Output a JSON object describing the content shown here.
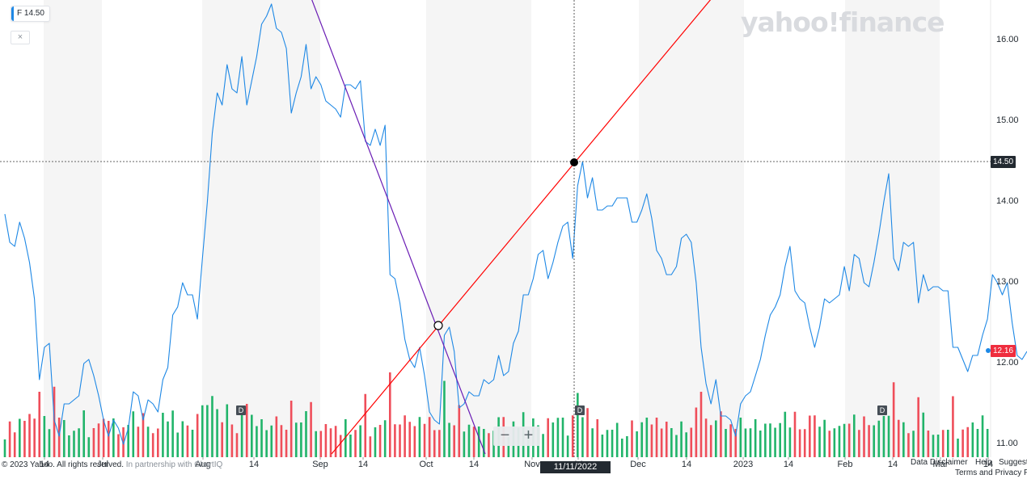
{
  "ticker": {
    "symbol": "F",
    "price": "14.50",
    "close_glyph": "×"
  },
  "logo": {
    "text": "yahoo!finance"
  },
  "crosshair": {
    "price_label": "14.50",
    "date_label": "11/11/2022"
  },
  "last_price_label": "12.16",
  "zoom": {
    "minus": "−",
    "plus": "+"
  },
  "dividend_marker": "D",
  "footer": {
    "copyright": "© 2023 Yahoo. All rights reserved.",
    "partnership": "In partnership with ChartIQ",
    "data_disclaimer": "Data Disclaimer",
    "help": "Help",
    "suggest": "Suggest",
    "terms": "Terms and Privacy P"
  },
  "colors": {
    "line": "#1e88e5",
    "up": "#21b46a",
    "down": "#ef4e5a",
    "trend_red": "#ff0000",
    "trend_purple": "#6a1cb4",
    "price_tag": "#1e88e5",
    "last_tag": "#ef2d3e"
  },
  "chart_data": {
    "type": "line",
    "symbol": "F",
    "ylim": [
      10.98,
      16.5
    ],
    "y_ticks": [
      "16.00",
      "15.00",
      "14.00",
      "13.00",
      "12.00",
      "11.00"
    ],
    "x_ticks": [
      "14",
      "Jul",
      "Aug",
      "14",
      "Sep",
      "14",
      "Oct",
      "14",
      "Nov",
      "14",
      "Dec",
      "14",
      "2023",
      "14",
      "Feb",
      "14",
      "Mar",
      "14"
    ],
    "series": [
      {
        "values": [
          13.85,
          13.5,
          13.45,
          13.75,
          13.55,
          13.25,
          12.8,
          11.8,
          12.2,
          12.25,
          11.3,
          11.1,
          11.5,
          11.5,
          11.55,
          11.6,
          12.0,
          12.05,
          11.85,
          11.6,
          11.3,
          11.1,
          11.3,
          11.2,
          11.0,
          11.2,
          11.65,
          11.6,
          11.3,
          11.55,
          11.5,
          11.4,
          11.8,
          11.95,
          12.6,
          12.7,
          13.0,
          12.85,
          12.85,
          12.55,
          13.3,
          14.0,
          14.85,
          15.35,
          15.2,
          15.7,
          15.4,
          15.35,
          15.8,
          15.2,
          15.5,
          15.8,
          16.2,
          16.3,
          16.45,
          16.15,
          16.1,
          15.9,
          15.1,
          15.35,
          15.55,
          15.95,
          15.4,
          15.55,
          15.45,
          15.25,
          15.2,
          15.15,
          15.05,
          15.45,
          15.45,
          15.4,
          15.5,
          14.75,
          14.7,
          14.9,
          14.7,
          14.95,
          13.1,
          13.05,
          12.75,
          12.3,
          12.05,
          11.95,
          12.2,
          11.85,
          11.4,
          11.3,
          11.25,
          12.35,
          12.45,
          12.15,
          11.45,
          11.5,
          11.65,
          11.6,
          11.6,
          11.8,
          11.75,
          11.8,
          12.1,
          11.85,
          11.9,
          12.25,
          12.4,
          12.85,
          12.85,
          13.05,
          13.35,
          13.4,
          13.05,
          13.25,
          13.5,
          13.7,
          13.75,
          13.3,
          14.2,
          14.5,
          14.05,
          14.3,
          13.9,
          13.9,
          13.95,
          13.95,
          14.05,
          14.05,
          14.05,
          13.75,
          13.75,
          13.9,
          14.1,
          13.8,
          13.4,
          13.3,
          13.1,
          13.1,
          13.2,
          13.55,
          13.6,
          13.5,
          13.0,
          12.2,
          11.75,
          11.5,
          11.8,
          11.35,
          11.35,
          11.3,
          11.1,
          11.5,
          11.6,
          11.65,
          11.85,
          12.05,
          12.35,
          12.6,
          12.7,
          12.85,
          13.2,
          13.45,
          12.9,
          12.8,
          12.75,
          12.45,
          12.2,
          12.45,
          12.8,
          12.75,
          12.8,
          12.85,
          13.2,
          12.9,
          13.35,
          13.3,
          13.0,
          12.95,
          13.25,
          13.6,
          14.0,
          14.35,
          13.3,
          13.15,
          13.5,
          13.45,
          13.5,
          12.75,
          13.1,
          12.9,
          12.95,
          12.95,
          12.9,
          12.9,
          12.2,
          12.2,
          12.05,
          11.9,
          12.1,
          12.1,
          12.35,
          12.55,
          13.1,
          13.0,
          12.85,
          13.0,
          12.5,
          12.1,
          12.05,
          12.15
        ]
      }
    ]
  }
}
